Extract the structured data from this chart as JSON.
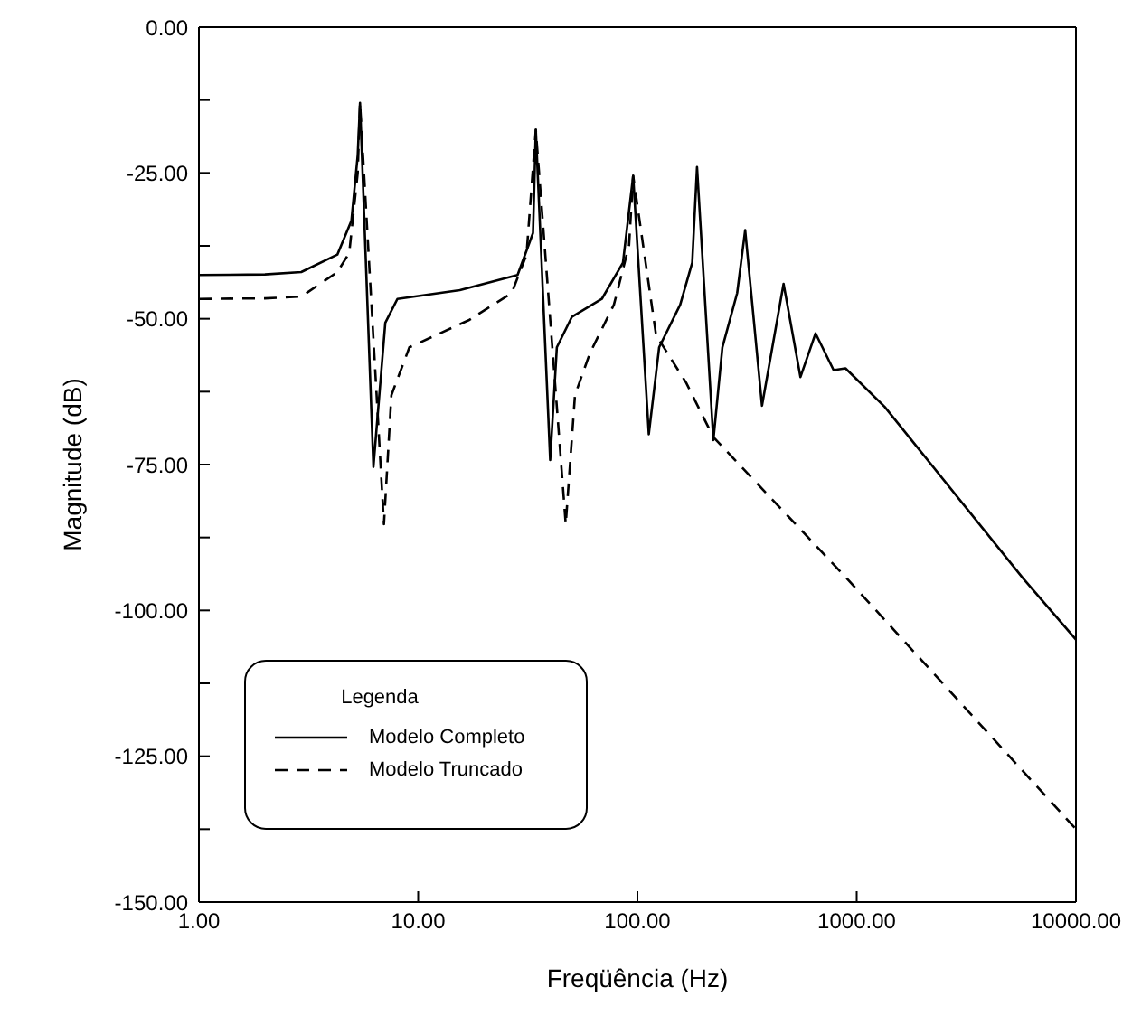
{
  "chart_data": {
    "type": "line",
    "xlabel": "Freqüência (Hz)",
    "ylabel": "Magnitude (dB)",
    "log": "x",
    "xlim": [
      1,
      10000
    ],
    "xticks": [
      {
        "value": 1,
        "label": "1.00"
      },
      {
        "value": 10,
        "label": "10.00"
      },
      {
        "value": 100,
        "label": "100.00"
      },
      {
        "value": 1000,
        "label": "1000.00"
      },
      {
        "value": 10000,
        "label": "10000.00"
      }
    ],
    "ylim": [
      -150,
      0
    ],
    "yticks": [
      {
        "value": -150,
        "label": "-150.00"
      },
      {
        "value": -137.5,
        "label": null
      },
      {
        "value": -125,
        "label": "-125.00"
      },
      {
        "value": -112.5,
        "label": null
      },
      {
        "value": -100,
        "label": "-100.00"
      },
      {
        "value": -87.5,
        "label": null
      },
      {
        "value": -75,
        "label": "-75.00"
      },
      {
        "value": -62.5,
        "label": null
      },
      {
        "value": -50,
        "label": "-50.00"
      },
      {
        "value": -37.5,
        "label": null
      },
      {
        "value": -25,
        "label": "-25.00"
      },
      {
        "value": -12.5,
        "label": null
      },
      {
        "value": 0,
        "label": "0.00"
      }
    ],
    "legend": "bottom left",
    "legend_title": "Legenda",
    "marker": "none",
    "series": [
      {
        "name": "Modelo Completo",
        "color": "#000000",
        "line_style": "solid",
        "x": [
          1,
          2,
          2.93,
          4.28,
          4.96,
          5.3,
          5.43,
          6.25,
          7.08,
          8.04,
          15.5,
          28.4,
          33.4,
          34.4,
          40,
          42.9,
          50.2,
          68.8,
          85.9,
          95.6,
          112.7,
          125.6,
          156.7,
          177.8,
          187,
          222,
          244,
          285,
          310,
          370,
          464,
          554,
          649,
          785,
          889,
          977,
          1342,
          5741,
          10000
        ],
        "values": [
          -42.5,
          -42.4,
          -42,
          -39,
          -33.2,
          -22,
          -13,
          -75.4,
          -50.7,
          -46.6,
          -45.1,
          -42.5,
          -35.3,
          -17.6,
          -74.2,
          -54.9,
          -49.7,
          -46.6,
          -40.4,
          -25.5,
          -69.8,
          -54.9,
          -47.6,
          -40.4,
          -24,
          -70.8,
          -54.9,
          -45.6,
          -34.8,
          -64.9,
          -44,
          -60,
          -52.5,
          -58.8,
          -58.5,
          -60,
          -65.1,
          -94.5,
          -105
        ]
      },
      {
        "name": "Modelo Truncado",
        "color": "#000000",
        "line_style": "dashed",
        "x": [
          1,
          2,
          2.93,
          4.28,
          4.85,
          5.3,
          5.43,
          6.98,
          7.55,
          9.12,
          17.1,
          26.7,
          31.2,
          34.4,
          47.1,
          51.9,
          60.7,
          78.1,
          91.6,
          95.6,
          121.6,
          167,
          222,
          901,
          10000
        ],
        "values": [
          -46.6,
          -46.5,
          -46.2,
          -42,
          -38.7,
          -25,
          -13,
          -85.2,
          -63.1,
          -54.9,
          -50.2,
          -45.6,
          -39,
          -17.6,
          -85.2,
          -63.1,
          -55.9,
          -47.6,
          -37.4,
          -25.5,
          -52.8,
          -61,
          -70.3,
          -94.5,
          -137.5
        ]
      }
    ]
  }
}
